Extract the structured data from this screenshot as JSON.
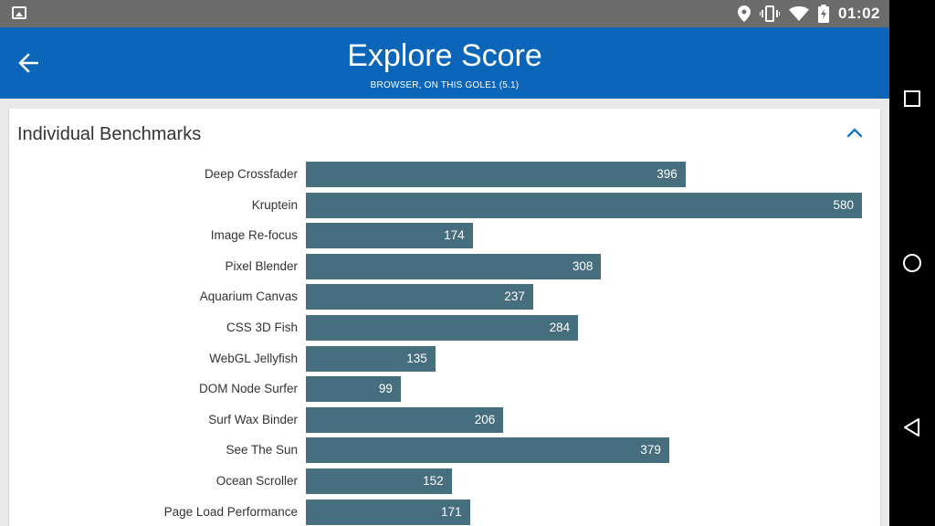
{
  "status_bar": {
    "time": "01:02",
    "icons": [
      "image-icon",
      "location-icon",
      "vibrate-icon",
      "wifi-icon",
      "battery-charging-icon"
    ]
  },
  "app_bar": {
    "title": "Explore Score",
    "subtitle": "BROWSER, ON THIS GOLE1 (5.1)",
    "back_icon": "arrow-left-icon",
    "background": "#0b65b8"
  },
  "card": {
    "title": "Individual Benchmarks",
    "collapse_icon": "chevron-up-icon"
  },
  "chart_data": {
    "type": "bar",
    "orientation": "horizontal",
    "categories": [
      "Deep Crossfader",
      "Kruptein",
      "Image Re-focus",
      "Pixel Blender",
      "Aquarium Canvas",
      "CSS 3D Fish",
      "WebGL Jellyfish",
      "DOM Node Surfer",
      "Surf Wax Binder",
      "See The Sun",
      "Ocean Scroller",
      "Page Load Performance"
    ],
    "values": [
      396,
      580,
      174,
      308,
      237,
      284,
      135,
      99,
      206,
      379,
      152,
      171
    ],
    "xlim": [
      0,
      580
    ],
    "bar_color": "#466e7f",
    "grid": false,
    "data_labels": true
  },
  "nav_bar": {
    "icons": [
      "recents-square-icon",
      "home-circle-icon",
      "back-triangle-icon"
    ]
  }
}
